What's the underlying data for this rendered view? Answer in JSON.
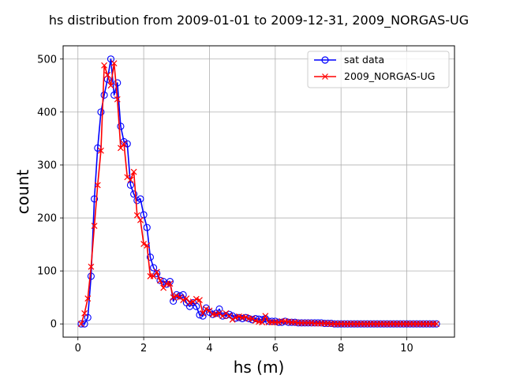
{
  "chart_data": {
    "type": "line",
    "title": "hs distribution from 2009-01-01 to 2009-12-31, 2009_NORGAS-UG",
    "xlabel": "hs (m)",
    "ylabel": "count",
    "xlim": [
      -0.45,
      11.45
    ],
    "ylim": [
      -25,
      525
    ],
    "xticks": [
      0,
      2,
      4,
      6,
      8,
      10
    ],
    "yticks": [
      0,
      100,
      200,
      300,
      400,
      500
    ],
    "grid": true,
    "legend_position": "top-right",
    "x": [
      0.1,
      0.2,
      0.3,
      0.4,
      0.5,
      0.6,
      0.7,
      0.8,
      0.9,
      1.0,
      1.1,
      1.2,
      1.3,
      1.4,
      1.5,
      1.6,
      1.7,
      1.8,
      1.9,
      2.0,
      2.1,
      2.2,
      2.3,
      2.4,
      2.5,
      2.6,
      2.7,
      2.8,
      2.9,
      3.0,
      3.1,
      3.2,
      3.3,
      3.4,
      3.5,
      3.6,
      3.7,
      3.8,
      3.9,
      4.0,
      4.1,
      4.2,
      4.3,
      4.4,
      4.5,
      4.6,
      4.7,
      4.8,
      4.9,
      5.0,
      5.1,
      5.2,
      5.3,
      5.4,
      5.5,
      5.6,
      5.7,
      5.8,
      5.9,
      6.0,
      6.1,
      6.2,
      6.3,
      6.4,
      6.5,
      6.6,
      6.7,
      6.8,
      6.9,
      7.0,
      7.1,
      7.2,
      7.3,
      7.4,
      7.5,
      7.6,
      7.7,
      7.8,
      7.9,
      8.0,
      8.1,
      8.2,
      8.3,
      8.4,
      8.5,
      8.6,
      8.7,
      8.8,
      8.9,
      9.0,
      9.1,
      9.2,
      9.3,
      9.4,
      9.5,
      9.6,
      9.7,
      9.8,
      9.9,
      10.0,
      10.1,
      10.2,
      10.3,
      10.4,
      10.5,
      10.6,
      10.7,
      10.8,
      10.9
    ],
    "series": [
      {
        "name": "sat data",
        "color": "#0000ff",
        "marker": "open-circle",
        "values": [
          0,
          0,
          12,
          90,
          236,
          332,
          400,
          432,
          462,
          500,
          432,
          455,
          373,
          344,
          340,
          262,
          245,
          233,
          236,
          206,
          182,
          126,
          106,
          95,
          82,
          80,
          75,
          80,
          43,
          55,
          53,
          55,
          40,
          33,
          40,
          33,
          17,
          15,
          30,
          22,
          18,
          20,
          28,
          15,
          16,
          18,
          15,
          11,
          12,
          10,
          12,
          10,
          8,
          10,
          9,
          8,
          10,
          5,
          5,
          5,
          3,
          3,
          5,
          3,
          3,
          3,
          2,
          2,
          2,
          2,
          2,
          2,
          2,
          2,
          1,
          1,
          1,
          0,
          0,
          0,
          0,
          0,
          0,
          0,
          0,
          0,
          0,
          0,
          0,
          0,
          0,
          0,
          0,
          0,
          0,
          0,
          0,
          0,
          0,
          0,
          0,
          0,
          0,
          0,
          0,
          0,
          0,
          0,
          0
        ]
      },
      {
        "name": "2009_NORGAS-UG",
        "color": "#ff0000",
        "marker": "x",
        "values": [
          0,
          20,
          48,
          108,
          185,
          262,
          327,
          488,
          470,
          450,
          492,
          424,
          332,
          340,
          277,
          272,
          287,
          205,
          196,
          151,
          148,
          90,
          90,
          98,
          82,
          68,
          76,
          76,
          50,
          53,
          50,
          45,
          48,
          40,
          42,
          47,
          45,
          20,
          28,
          25,
          18,
          18,
          20,
          15,
          20,
          15,
          8,
          12,
          14,
          12,
          13,
          10,
          10,
          6,
          4,
          3,
          15,
          3,
          3,
          3,
          3,
          5,
          5,
          4,
          3,
          3,
          2,
          2,
          2,
          2,
          2,
          1,
          1,
          1,
          1,
          1,
          0,
          0,
          0,
          0,
          0,
          0,
          0,
          0,
          0,
          0,
          0,
          0,
          0,
          0,
          0,
          0,
          0,
          0,
          0,
          0,
          0,
          0,
          0,
          0,
          0,
          0,
          0,
          0,
          0,
          0,
          0,
          0,
          0
        ]
      }
    ]
  }
}
